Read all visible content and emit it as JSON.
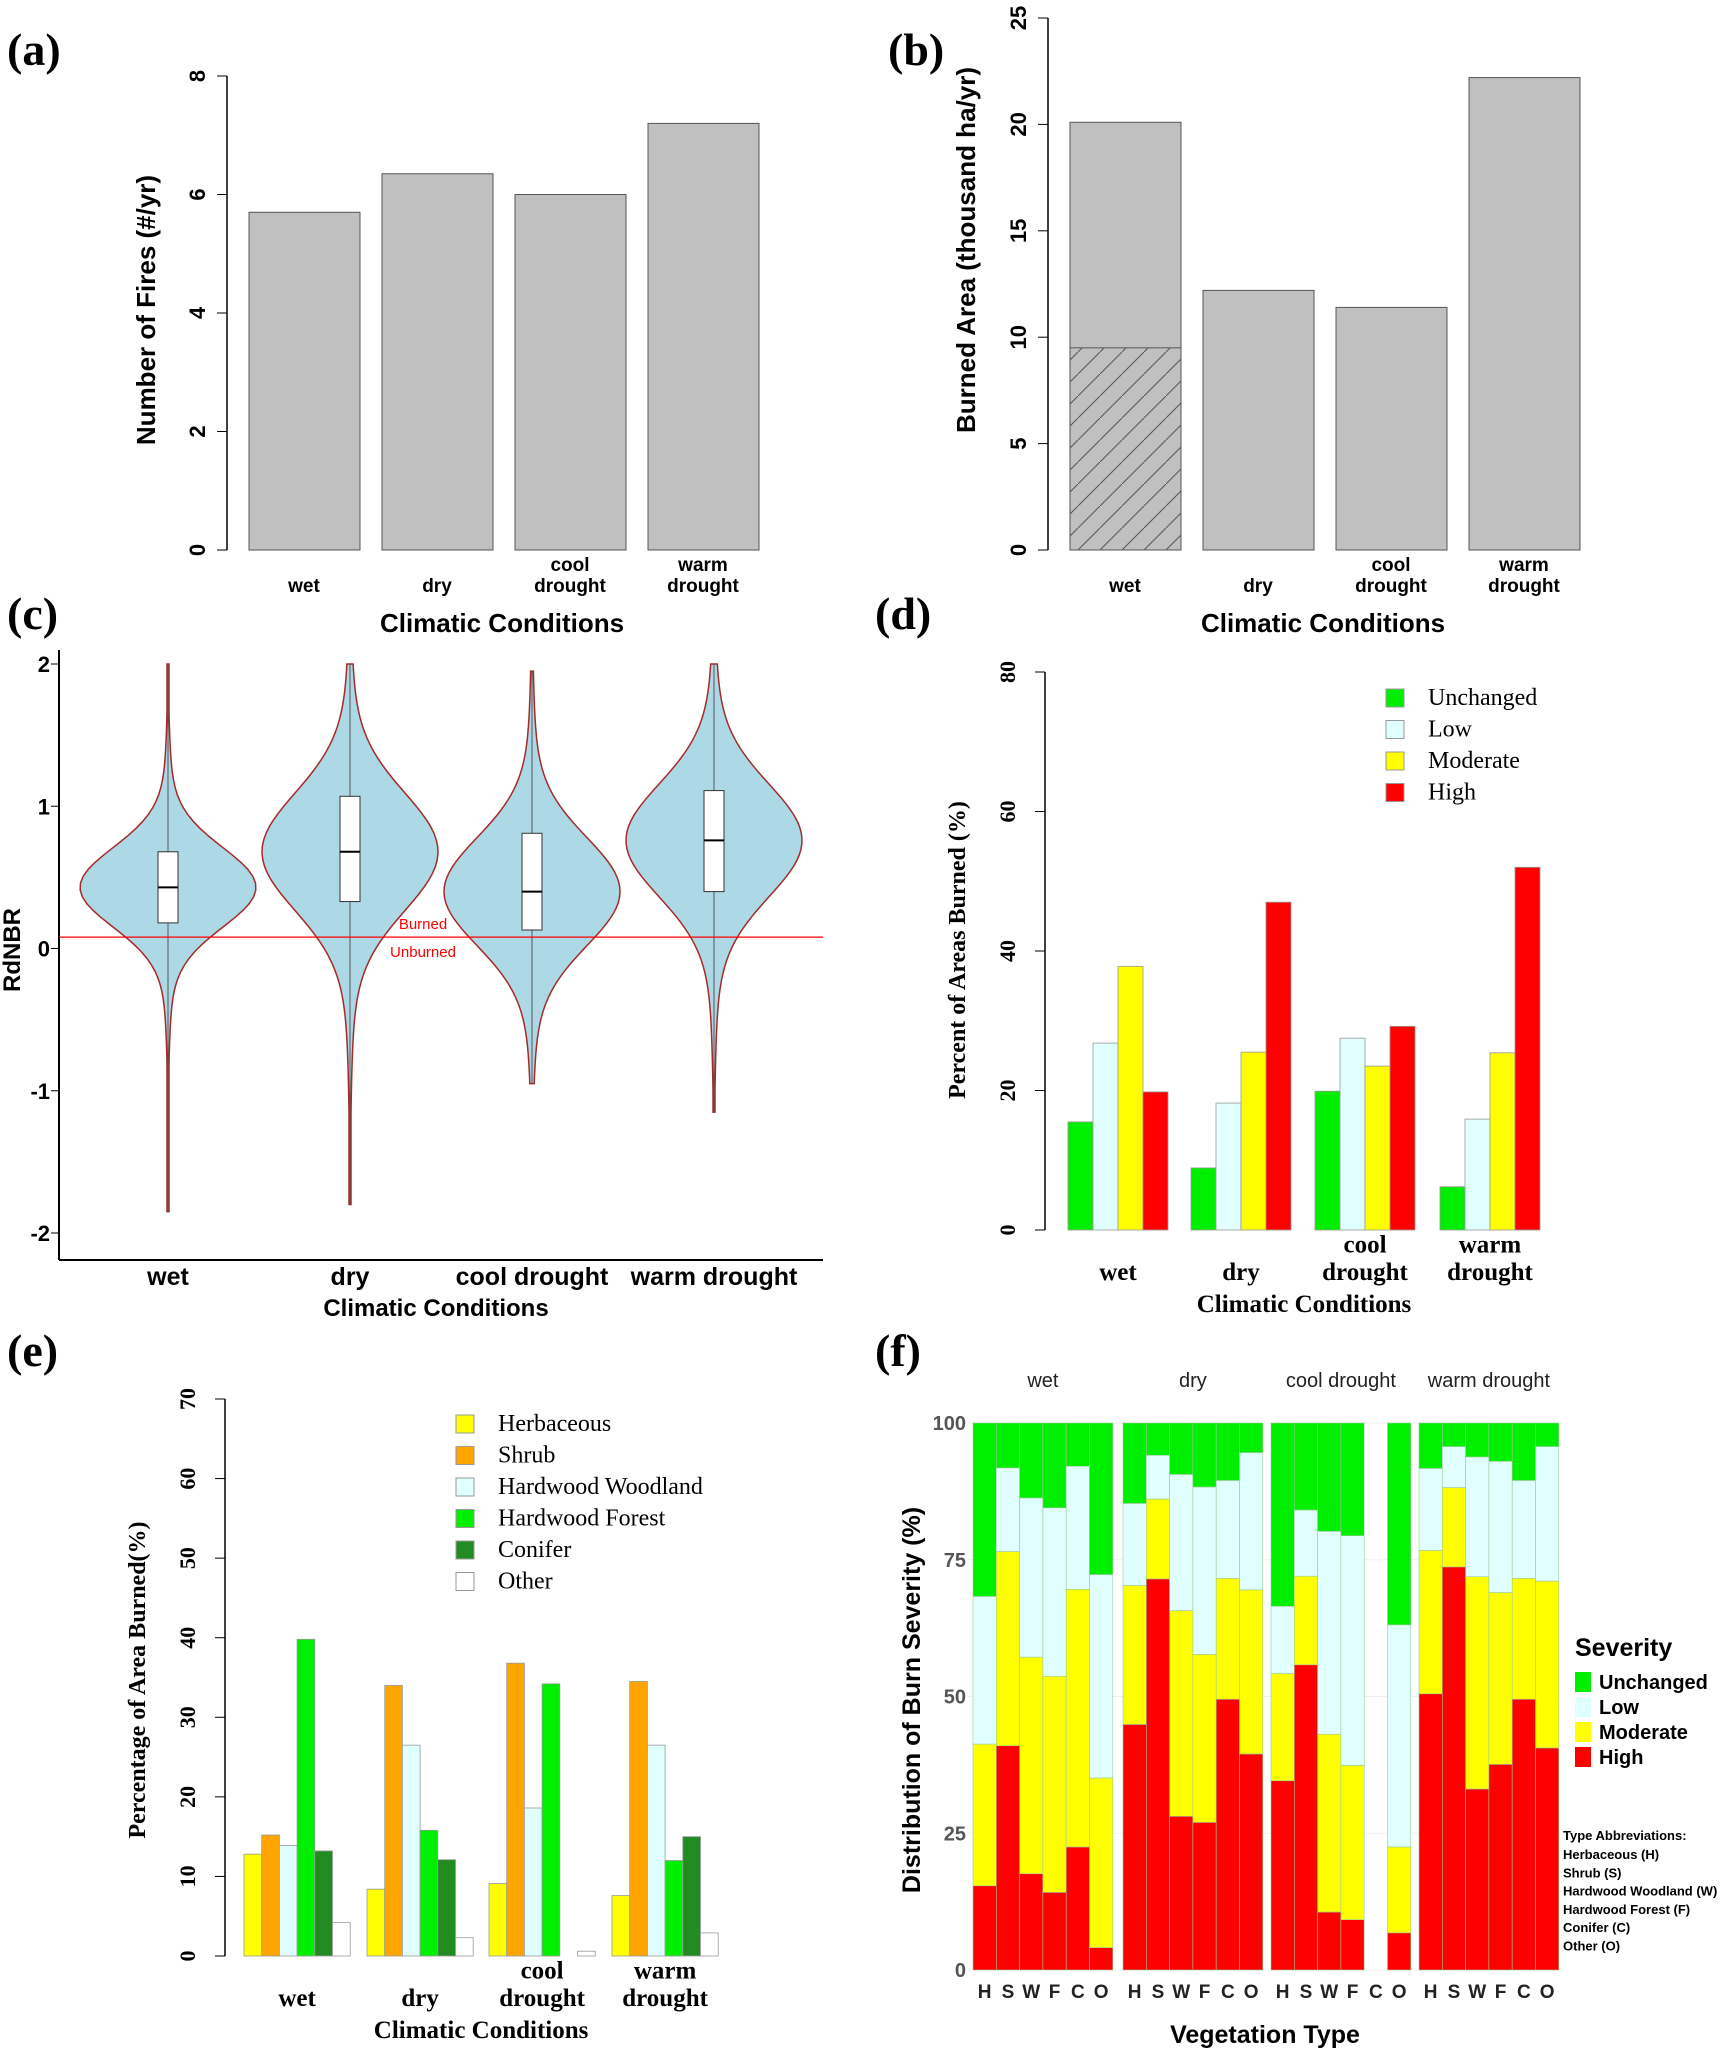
{
  "chart_data": [
    {
      "panel": "(a)",
      "type": "bar",
      "categories": [
        "wet",
        "dry",
        "cool drought",
        "warm drought"
      ],
      "values": [
        5.7,
        6.35,
        6.0,
        7.2
      ],
      "xlabel": "Climatic Conditions",
      "ylabel": "Number of Fires (#/yr)",
      "ylim": [
        0,
        8
      ],
      "yticks": [
        0,
        2,
        4,
        6,
        8
      ],
      "color": "#c0c0c0"
    },
    {
      "panel": "(b)",
      "type": "bar",
      "categories": [
        "wet",
        "dry",
        "cool drought",
        "warm drought"
      ],
      "values": [
        20.1,
        12.2,
        11.4,
        22.2
      ],
      "hatched_values": [
        9.5,
        0,
        0,
        0
      ],
      "xlabel": "Climatic Conditions",
      "ylabel": "Burned Area (thousand ha/yr)",
      "ylim": [
        0,
        25
      ],
      "yticks": [
        0,
        5,
        10,
        15,
        20,
        25
      ],
      "color": "#c0c0c0"
    },
    {
      "panel": "(c)",
      "type": "violin",
      "categories": [
        "wet",
        "dry",
        "cool drought",
        "warm drought"
      ],
      "stats": [
        {
          "min": -1.85,
          "q1": 0.18,
          "median": 0.43,
          "q3": 0.68,
          "max": 2.0
        },
        {
          "min": -1.8,
          "q1": 0.33,
          "median": 0.68,
          "q3": 1.07,
          "max": 2.0
        },
        {
          "min": -0.95,
          "q1": 0.13,
          "median": 0.4,
          "q3": 0.81,
          "max": 1.95
        },
        {
          "min": -1.15,
          "q1": 0.4,
          "median": 0.76,
          "q3": 1.11,
          "max": 2.0
        }
      ],
      "threshold": 0.08,
      "threshold_labels": [
        "Burned",
        "Unburned"
      ],
      "xlabel": "Climatic Conditions",
      "ylabel": "RdNBR",
      "ylim": [
        -2.2,
        2
      ],
      "yticks": [
        -2,
        -1,
        0,
        1,
        2
      ],
      "fill": "#add8e6",
      "outline": "#a52a2a",
      "threshold_color": "#ff0000"
    },
    {
      "panel": "(d)",
      "type": "bar",
      "categories": [
        "wet",
        "dry",
        "cool drought",
        "warm drought"
      ],
      "series": [
        {
          "name": "Unchanged",
          "color": "#00ee00",
          "values": [
            15.5,
            8.9,
            19.9,
            6.2
          ]
        },
        {
          "name": "Low",
          "color": "#e0ffff",
          "values": [
            26.8,
            18.2,
            27.5,
            15.9
          ]
        },
        {
          "name": "Moderate",
          "color": "#ffff00",
          "values": [
            37.8,
            25.5,
            23.5,
            25.4
          ]
        },
        {
          "name": "High",
          "color": "#ff0000",
          "values": [
            19.8,
            47.0,
            29.2,
            52.0
          ]
        }
      ],
      "xlabel": "Climatic Conditions",
      "ylabel": "Percent of Areas Burned (%)",
      "ylim": [
        0,
        80
      ],
      "yticks": [
        0,
        20,
        40,
        60,
        80
      ],
      "legend": "top-right"
    },
    {
      "panel": "(e)",
      "type": "bar",
      "categories": [
        "wet",
        "dry",
        "cool drought",
        "warm drought"
      ],
      "series": [
        {
          "name": "Herbaceous",
          "color": "#ffff00",
          "values": [
            12.8,
            8.4,
            9.1,
            7.6
          ]
        },
        {
          "name": "Shrub",
          "color": "#ffa500",
          "values": [
            15.2,
            34.0,
            36.8,
            34.5
          ]
        },
        {
          "name": "Hardwood Woodland",
          "color": "#e0ffff",
          "values": [
            13.9,
            26.5,
            18.6,
            26.5
          ]
        },
        {
          "name": "Hardwood Forest",
          "color": "#00ee00",
          "values": [
            39.8,
            15.8,
            34.2,
            12.0
          ]
        },
        {
          "name": "Conifer",
          "color": "#228b22",
          "values": [
            13.2,
            12.1,
            0,
            15.0
          ]
        },
        {
          "name": "Other",
          "color": "#ffffff",
          "values": [
            4.2,
            2.3,
            0.6,
            2.9
          ]
        }
      ],
      "xlabel": "Climatic Conditions",
      "ylabel": "Percentage of Area Burned(%)",
      "ylim": [
        0,
        70
      ],
      "yticks": [
        0,
        10,
        20,
        30,
        40,
        50,
        60,
        70
      ],
      "legend": "top-right"
    },
    {
      "panel": "(f)",
      "type": "stacked_bar",
      "facets": [
        "wet",
        "dry",
        "cool drought",
        "warm drought"
      ],
      "categories": [
        "H",
        "S",
        "W",
        "F",
        "C",
        "O"
      ],
      "severity_order": [
        "High",
        "Moderate",
        "Low",
        "Unchanged"
      ],
      "colors": {
        "High": "#ff0000",
        "Moderate": "#ffff00",
        "Low": "#e0ffff",
        "Unchanged": "#00ee00"
      },
      "values": {
        "wet": [
          [
            15.4,
            25.9,
            27.0,
            31.7
          ],
          [
            41.0,
            35.5,
            15.3,
            8.2
          ],
          [
            17.6,
            39.6,
            29.1,
            13.7
          ],
          [
            14.2,
            39.5,
            30.8,
            15.5
          ],
          [
            22.5,
            47.1,
            22.5,
            7.9
          ],
          [
            4.1,
            31.0,
            37.2,
            27.7
          ]
        ],
        "dry": [
          [
            44.9,
            25.4,
            15.0,
            14.7
          ],
          [
            71.5,
            14.6,
            8.0,
            5.9
          ],
          [
            28.1,
            37.6,
            24.9,
            9.4
          ],
          [
            27.0,
            30.7,
            30.6,
            11.7
          ],
          [
            49.5,
            22.1,
            17.9,
            10.5
          ],
          [
            39.5,
            30.0,
            25.1,
            5.4
          ]
        ],
        "cool drought": [
          [
            34.6,
            19.6,
            12.3,
            33.5
          ],
          [
            55.8,
            16.2,
            12.1,
            15.9
          ],
          [
            10.6,
            32.5,
            37.1,
            19.8
          ],
          [
            9.2,
            28.2,
            42.0,
            20.6
          ],
          [
            0,
            0,
            0,
            0
          ],
          [
            6.8,
            15.7,
            40.6,
            36.9
          ]
        ],
        "warm drought": [
          [
            50.5,
            26.2,
            15.0,
            8.3
          ],
          [
            73.7,
            14.5,
            7.5,
            4.3
          ],
          [
            33.1,
            38.8,
            21.9,
            6.2
          ],
          [
            37.6,
            31.4,
            24.0,
            7.0
          ],
          [
            49.5,
            22.1,
            17.9,
            10.5
          ],
          [
            40.6,
            30.5,
            24.6,
            4.3
          ]
        ]
      },
      "xlabel": "Vegetation Type",
      "ylabel": "Distribution of Burn Severity (%)",
      "ylim": [
        0,
        100
      ],
      "yticks": [
        0,
        25,
        50,
        75,
        100
      ],
      "legend_title": "Severity",
      "legend_items": [
        "Unchanged",
        "Low",
        "Moderate",
        "High"
      ],
      "abbrev_title": "Type Abbreviations:",
      "abbreviations": [
        "Herbaceous (H)",
        "Shrub (S)",
        "Hardwood Woodland (W)",
        "Hardwood Forest (F)",
        "Conifer (C)",
        "Other (O)"
      ]
    }
  ]
}
